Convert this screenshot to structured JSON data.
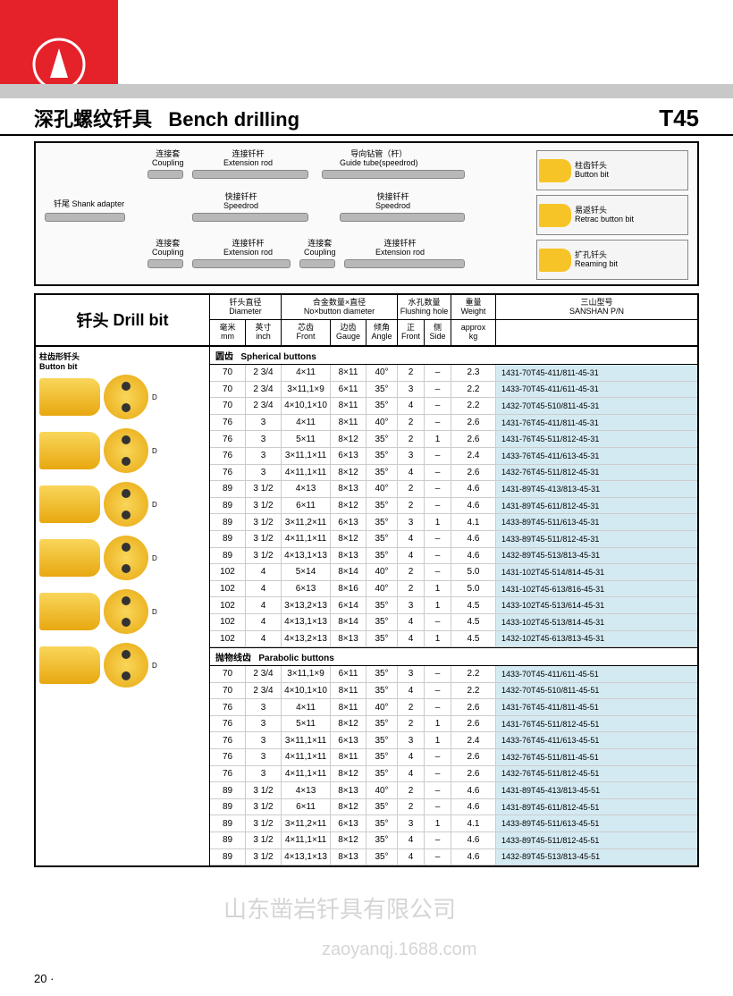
{
  "header": {
    "title_cn": "深孔螺纹钎具",
    "title_en": "Bench drilling",
    "model": "T45"
  },
  "diagram": {
    "shank_cn": "钎尾",
    "shank_en": "Shank adapter",
    "coupling_cn": "连接套",
    "coupling_en": "Coupling",
    "ext_cn": "连接钎杆",
    "ext_en": "Extension rod",
    "speed_cn": "快接钎杆",
    "speed_en": "Speedrod",
    "guide_cn": "导向钻管（杆）",
    "guide_en": "Guide tube(speedrod)",
    "btn_cn": "柱齿钎头",
    "btn_en": "Button bit",
    "retrac_cn": "易返钎头",
    "retrac_en": "Retrac button bit",
    "ream_cn": "扩孔钎头",
    "ream_en": "Reaming bit"
  },
  "table": {
    "section_title_cn": "钎头",
    "section_title_en": "Drill bit",
    "head": {
      "dia_cn": "钎头直径",
      "dia_en": "Diameter",
      "mm_cn": "毫米",
      "mm_en": "mm",
      "inch_cn": "英寸",
      "inch_en": "inch",
      "nbd_cn": "合金数量×直径",
      "nbd_en": "No×button diameter",
      "front_cn": "芯齿",
      "front_en": "Front",
      "gauge_cn": "边齿",
      "gauge_en": "Gauge",
      "angle_cn": "倾角",
      "angle_en": "Angle",
      "flush_cn": "水孔数量",
      "flush_en": "Flushing hole",
      "flush_f_cn": "正",
      "flush_f_en": "Front",
      "flush_s_cn": "侧",
      "flush_s_en": "Side",
      "weight_cn": "重量",
      "weight_en": "Weight",
      "weight_approx": "approx",
      "weight_kg": "kg",
      "pn_cn": "三山型号",
      "pn_en": "SANSHAN P/N"
    },
    "button_bit_cn": "柱齿形钎头",
    "button_bit_en": "Button bit",
    "spherical_cn": "圆齿",
    "spherical_en": "Spherical buttons",
    "parabolic_cn": "抛物线齿",
    "parabolic_en": "Parabolic buttons",
    "spherical_rows": [
      {
        "mm": "70",
        "in": "2 3/4",
        "front": "4×11",
        "gauge": "8×11",
        "angle": "40°",
        "ff": "2",
        "fs": "–",
        "kg": "2.3",
        "pn": "1431-70T45-411/811-45-31"
      },
      {
        "mm": "70",
        "in": "2 3/4",
        "front": "3×11,1×9",
        "gauge": "6×11",
        "angle": "35°",
        "ff": "3",
        "fs": "–",
        "kg": "2.2",
        "pn": "1433-70T45-411/611-45-31"
      },
      {
        "mm": "70",
        "in": "2 3/4",
        "front": "4×10,1×10",
        "gauge": "8×11",
        "angle": "35°",
        "ff": "4",
        "fs": "–",
        "kg": "2.2",
        "pn": "1432-70T45-510/811-45-31"
      },
      {
        "mm": "76",
        "in": "3",
        "front": "4×11",
        "gauge": "8×11",
        "angle": "40°",
        "ff": "2",
        "fs": "–",
        "kg": "2.6",
        "pn": "1431-76T45-411/811-45-31"
      },
      {
        "mm": "76",
        "in": "3",
        "front": "5×11",
        "gauge": "8×12",
        "angle": "35°",
        "ff": "2",
        "fs": "1",
        "kg": "2.6",
        "pn": "1431-76T45-511/812-45-31"
      },
      {
        "mm": "76",
        "in": "3",
        "front": "3×11,1×11",
        "gauge": "6×13",
        "angle": "35°",
        "ff": "3",
        "fs": "–",
        "kg": "2.4",
        "pn": "1433-76T45-411/613-45-31"
      },
      {
        "mm": "76",
        "in": "3",
        "front": "4×11,1×11",
        "gauge": "8×12",
        "angle": "35°",
        "ff": "4",
        "fs": "–",
        "kg": "2.6",
        "pn": "1432-76T45-511/812-45-31"
      },
      {
        "mm": "89",
        "in": "3 1/2",
        "front": "4×13",
        "gauge": "8×13",
        "angle": "40°",
        "ff": "2",
        "fs": "–",
        "kg": "4.6",
        "pn": "1431-89T45-413/813-45-31"
      },
      {
        "mm": "89",
        "in": "3 1/2",
        "front": "6×11",
        "gauge": "8×12",
        "angle": "35°",
        "ff": "2",
        "fs": "–",
        "kg": "4.6",
        "pn": "1431-89T45-611/812-45-31"
      },
      {
        "mm": "89",
        "in": "3 1/2",
        "front": "3×11,2×11",
        "gauge": "6×13",
        "angle": "35°",
        "ff": "3",
        "fs": "1",
        "kg": "4.1",
        "pn": "1433-89T45-511/613-45-31"
      },
      {
        "mm": "89",
        "in": "3 1/2",
        "front": "4×11,1×11",
        "gauge": "8×12",
        "angle": "35°",
        "ff": "4",
        "fs": "–",
        "kg": "4.6",
        "pn": "1433-89T45-511/812-45-31"
      },
      {
        "mm": "89",
        "in": "3 1/2",
        "front": "4×13,1×13",
        "gauge": "8×13",
        "angle": "35°",
        "ff": "4",
        "fs": "–",
        "kg": "4.6",
        "pn": "1432-89T45-513/813-45-31"
      },
      {
        "mm": "102",
        "in": "4",
        "front": "5×14",
        "gauge": "8×14",
        "angle": "40°",
        "ff": "2",
        "fs": "–",
        "kg": "5.0",
        "pn": "1431-102T45-514/814-45-31"
      },
      {
        "mm": "102",
        "in": "4",
        "front": "6×13",
        "gauge": "8×16",
        "angle": "40°",
        "ff": "2",
        "fs": "1",
        "kg": "5.0",
        "pn": "1431-102T45-613/816-45-31"
      },
      {
        "mm": "102",
        "in": "4",
        "front": "3×13,2×13",
        "gauge": "6×14",
        "angle": "35°",
        "ff": "3",
        "fs": "1",
        "kg": "4.5",
        "pn": "1433-102T45-513/614-45-31"
      },
      {
        "mm": "102",
        "in": "4",
        "front": "4×13,1×13",
        "gauge": "8×14",
        "angle": "35°",
        "ff": "4",
        "fs": "–",
        "kg": "4.5",
        "pn": "1433-102T45-513/814-45-31"
      },
      {
        "mm": "102",
        "in": "4",
        "front": "4×13,2×13",
        "gauge": "8×13",
        "angle": "35°",
        "ff": "4",
        "fs": "1",
        "kg": "4.5",
        "pn": "1432-102T45-613/813-45-31"
      }
    ],
    "parabolic_rows": [
      {
        "mm": "70",
        "in": "2 3/4",
        "front": "3×11,1×9",
        "gauge": "6×11",
        "angle": "35°",
        "ff": "3",
        "fs": "–",
        "kg": "2.2",
        "pn": "1433-70T45-411/611-45-51"
      },
      {
        "mm": "70",
        "in": "2 3/4",
        "front": "4×10,1×10",
        "gauge": "8×11",
        "angle": "35°",
        "ff": "4",
        "fs": "–",
        "kg": "2.2",
        "pn": "1432-70T45-510/811-45-51"
      },
      {
        "mm": "76",
        "in": "3",
        "front": "4×11",
        "gauge": "8×11",
        "angle": "40°",
        "ff": "2",
        "fs": "–",
        "kg": "2.6",
        "pn": "1431-76T45-411/811-45-51"
      },
      {
        "mm": "76",
        "in": "3",
        "front": "5×11",
        "gauge": "8×12",
        "angle": "35°",
        "ff": "2",
        "fs": "1",
        "kg": "2.6",
        "pn": "1431-76T45-511/812-45-51"
      },
      {
        "mm": "76",
        "in": "3",
        "front": "3×11,1×11",
        "gauge": "6×13",
        "angle": "35°",
        "ff": "3",
        "fs": "1",
        "kg": "2.4",
        "pn": "1433-76T45-411/613-45-51"
      },
      {
        "mm": "76",
        "in": "3",
        "front": "4×11,1×11",
        "gauge": "8×11",
        "angle": "35°",
        "ff": "4",
        "fs": "–",
        "kg": "2.6",
        "pn": "1432-76T45-511/811-45-51"
      },
      {
        "mm": "76",
        "in": "3",
        "front": "4×11,1×11",
        "gauge": "8×12",
        "angle": "35°",
        "ff": "4",
        "fs": "–",
        "kg": "2.6",
        "pn": "1432-76T45-511/812-45-51"
      },
      {
        "mm": "89",
        "in": "3 1/2",
        "front": "4×13",
        "gauge": "8×13",
        "angle": "40°",
        "ff": "2",
        "fs": "–",
        "kg": "4.6",
        "pn": "1431-89T45-413/813-45-51"
      },
      {
        "mm": "89",
        "in": "3 1/2",
        "front": "6×11",
        "gauge": "8×12",
        "angle": "35°",
        "ff": "2",
        "fs": "–",
        "kg": "4.6",
        "pn": "1431-89T45-611/812-45-51"
      },
      {
        "mm": "89",
        "in": "3 1/2",
        "front": "3×11,2×11",
        "gauge": "6×13",
        "angle": "35°",
        "ff": "3",
        "fs": "1",
        "kg": "4.1",
        "pn": "1433-89T45-511/613-45-51"
      },
      {
        "mm": "89",
        "in": "3 1/2",
        "front": "4×11,1×11",
        "gauge": "8×12",
        "angle": "35°",
        "ff": "4",
        "fs": "–",
        "kg": "4.6",
        "pn": "1433-89T45-511/812-45-51"
      },
      {
        "mm": "89",
        "in": "3 1/2",
        "front": "4×13,1×13",
        "gauge": "8×13",
        "angle": "35°",
        "ff": "4",
        "fs": "–",
        "kg": "4.6",
        "pn": "1432-89T45-513/813-45-51"
      }
    ]
  },
  "page_number": "20 ·",
  "watermark1": "山东凿岩钎具有限公司",
  "watermark2": "zaoyanqj.1688.com",
  "colors": {
    "accent_red": "#e5212a",
    "pn_bg": "#d4eaf2",
    "bit_yellow": "#f6c427",
    "gray_band": "#c8c8c8"
  }
}
